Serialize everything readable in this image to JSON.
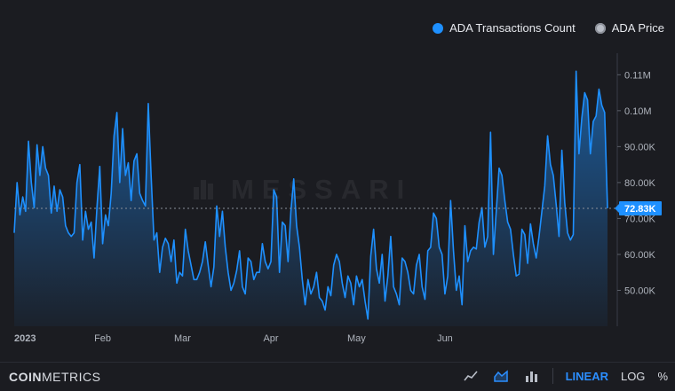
{
  "legend": {
    "series1": "ADA Transactions Count",
    "series2": "ADA Price"
  },
  "watermark": "MESSARI",
  "footer": {
    "brand_bold": "COIN",
    "brand_rest": "METRICS",
    "icons": [
      "line-chart-icon",
      "area-chart-icon",
      "bar-chart-icon"
    ],
    "scale_linear": "LINEAR",
    "scale_log": "LOG",
    "scale_percent": "%"
  },
  "colors": {
    "series": "#1e90ff",
    "background": "#1b1c21",
    "last_value_badge": "#1e90ff"
  },
  "chart_data": {
    "type": "area",
    "series": [
      {
        "name": "ADA Transactions Count",
        "x_start": "2023-01-01",
        "x_interval": "daily",
        "values": [
          66000,
          80000,
          71000,
          76000,
          72000,
          91500,
          80000,
          73000,
          90500,
          82000,
          90000,
          84000,
          82000,
          71500,
          79000,
          72000,
          78000,
          76000,
          68000,
          66000,
          65000,
          66000,
          80000,
          85000,
          64000,
          72000,
          67000,
          69000,
          59000,
          73000,
          84500,
          63000,
          71000,
          68000,
          77000,
          93000,
          99500,
          80000,
          95000,
          82000,
          85500,
          75000,
          86000,
          88000,
          77000,
          75000,
          73500,
          102000,
          82000,
          64000,
          66000,
          55000,
          62000,
          64500,
          63000,
          58000,
          64000,
          52000,
          55000,
          54000,
          67000,
          61000,
          57000,
          53000,
          53000,
          55000,
          58000,
          63500,
          57000,
          51000,
          56500,
          73500,
          65000,
          72000,
          62000,
          55000,
          50000,
          52000,
          55500,
          61000,
          51000,
          49000,
          59000,
          58000,
          53000,
          55000,
          55000,
          63000,
          58000,
          56000,
          58000,
          78000,
          76000,
          55000,
          69000,
          68000,
          58000,
          72000,
          81000,
          68000,
          62000,
          53000,
          46000,
          53000,
          49000,
          51000,
          55000,
          48000,
          47000,
          44500,
          51000,
          48500,
          57000,
          60000,
          58000,
          52000,
          48000,
          54000,
          52000,
          46000,
          54000,
          51000,
          53000,
          47000,
          42000,
          59500,
          67000,
          56000,
          52000,
          60000,
          47000,
          54000,
          65000,
          51000,
          49000,
          46000,
          59000,
          58000,
          55000,
          50000,
          49000,
          57000,
          60000,
          51000,
          47500,
          61000,
          62000,
          71500,
          70000,
          62000,
          60000,
          49000,
          54000,
          75000,
          61000,
          50000,
          54000,
          46000,
          68000,
          58000,
          61000,
          62000,
          61500,
          69000,
          73000,
          62000,
          65000,
          94000,
          60000,
          72000,
          84000,
          82000,
          75000,
          69000,
          67000,
          60000,
          54000,
          54500,
          67000,
          65500,
          57500,
          68500,
          63000,
          59000,
          65000,
          72000,
          79000,
          93000,
          85000,
          82000,
          74000,
          65000,
          89000,
          74500,
          66000,
          64000,
          65500,
          111000,
          88000,
          98000,
          105000,
          103000,
          88000,
          97000,
          98500,
          106000,
          101500,
          99500,
          72830
        ]
      },
      {
        "name": "ADA Price",
        "values": []
      }
    ],
    "x_ticks": [
      "2023",
      "Feb",
      "Mar",
      "Apr",
      "May",
      "Jun"
    ],
    "x_tick_dates": [
      "2023-01-01",
      "2023-02-01",
      "2023-03-01",
      "2023-04-01",
      "2023-05-01",
      "2023-06-01"
    ],
    "y_ticks": [
      "50.00K",
      "60.00K",
      "70.00K",
      "80.00K",
      "90.00K",
      "0.10M",
      "0.11M"
    ],
    "y_tick_values": [
      50000,
      60000,
      70000,
      80000,
      90000,
      100000,
      110000
    ],
    "ylim": [
      40000,
      116000
    ],
    "last_value_label": "72.83K",
    "scale": "linear",
    "grid": false,
    "legend_position": "top-right"
  }
}
